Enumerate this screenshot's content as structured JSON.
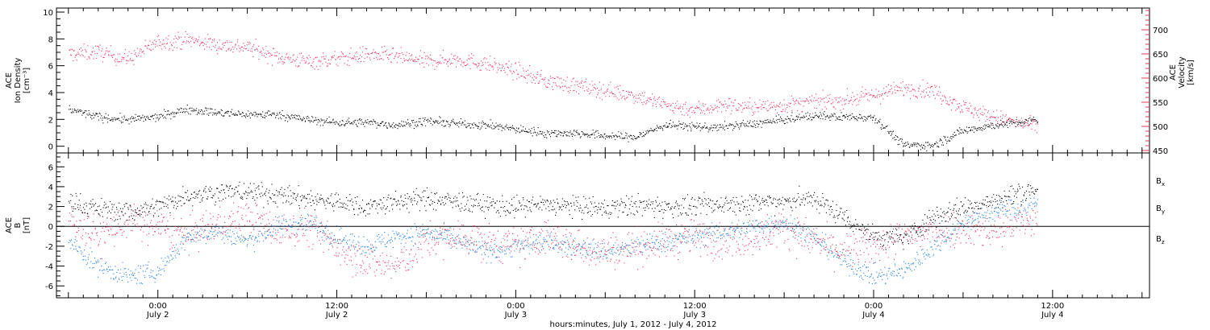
{
  "chart_data": [
    {
      "type": "scatter",
      "panel": "top",
      "left_axis": {
        "label_lines": [
          "ACE",
          "Ion Density",
          "[cm⁻³]"
        ],
        "ylim": [
          -0.5,
          10.3
        ],
        "ticks": [
          0,
          2,
          4,
          6,
          8,
          10
        ],
        "minor_step": 0.5,
        "color": "#000000"
      },
      "right_axis": {
        "label_lines": [
          "ACE",
          "Velocity",
          "[km/s]"
        ],
        "ylim": [
          445,
          745
        ],
        "ticks": [
          450,
          500,
          550,
          600,
          650,
          700
        ],
        "minor_step": 10,
        "color": "#e8335c"
      },
      "series": [
        {
          "axis": "left",
          "color": "#000000",
          "x": [
            -6,
            -4,
            -2,
            0,
            2,
            4,
            6,
            8,
            10,
            12,
            14,
            16,
            18,
            20,
            22,
            24,
            26,
            28,
            30,
            32,
            34,
            36,
            37.5,
            38,
            40,
            42,
            44,
            46,
            48,
            50,
            52,
            54,
            56,
            58,
            59
          ],
          "values": [
            2.8,
            2.2,
            2.0,
            2.2,
            2.8,
            2.5,
            2.4,
            2.4,
            2.0,
            1.8,
            1.8,
            1.6,
            1.9,
            1.7,
            1.6,
            1.3,
            1.0,
            1.0,
            0.8,
            0.7,
            1.6,
            1.5,
            1.4,
            1.5,
            1.7,
            2.0,
            2.3,
            2.2,
            2.2,
            0.1,
            0.1,
            1.2,
            1.6,
            1.8,
            2.0
          ],
          "spread": 0.45
        },
        {
          "axis": "right",
          "color": "#e8335c",
          "x": [
            -6,
            -4,
            -2,
            0,
            2,
            4,
            6,
            8,
            10,
            12,
            14,
            16,
            18,
            20,
            22,
            24,
            26,
            28,
            30,
            32,
            34,
            36,
            38,
            40,
            42,
            44,
            46,
            48,
            50,
            52,
            54,
            56,
            58,
            59
          ],
          "values": [
            650,
            655,
            640,
            675,
            680,
            670,
            665,
            645,
            635,
            640,
            650,
            645,
            635,
            640,
            630,
            615,
            595,
            585,
            575,
            565,
            545,
            535,
            545,
            540,
            545,
            550,
            555,
            565,
            580,
            575,
            540,
            520,
            505,
            500
          ],
          "spread": 24
        }
      ]
    },
    {
      "type": "scatter",
      "panel": "bottom",
      "left_axis": {
        "label_lines": [
          "ACE",
          "B",
          "[nT]"
        ],
        "ylim": [
          -7.2,
          7.4
        ],
        "ticks": [
          -6,
          -4,
          -2,
          0,
          2,
          4,
          6
        ],
        "minor_step": 0.5,
        "color": "#000000"
      },
      "zero_line": 0,
      "series": [
        {
          "name": "Bx",
          "name_base": "B",
          "name_sub": "x",
          "color": "#000000",
          "x": [
            -6,
            -4,
            -2,
            0,
            2,
            4,
            6,
            8,
            10,
            12,
            14,
            16,
            18,
            20,
            22,
            24,
            26,
            28,
            30,
            32,
            34,
            36,
            38,
            40,
            42,
            44,
            46,
            48,
            50,
            52,
            54,
            56,
            58,
            59
          ],
          "values": [
            2.5,
            1.8,
            1.5,
            2.0,
            3.2,
            3.5,
            3.5,
            3.2,
            2.8,
            2.5,
            2.0,
            2.5,
            2.8,
            2.5,
            2.2,
            2.0,
            2.2,
            2.0,
            1.8,
            2.2,
            2.0,
            2.0,
            2.3,
            2.4,
            2.6,
            2.8,
            1.0,
            -1.0,
            -1.2,
            1.0,
            2.0,
            2.5,
            3.5,
            3.8
          ],
          "spread": 1.5
        },
        {
          "name": "By",
          "name_base": "B",
          "name_sub": "y",
          "color": "#1f7fe0",
          "x": [
            -6,
            -4,
            -2,
            0,
            2,
            4,
            6,
            8,
            10,
            12,
            14,
            16,
            18,
            20,
            22,
            24,
            26,
            28,
            30,
            32,
            34,
            36,
            38,
            40,
            42,
            44,
            46,
            48,
            50,
            52,
            54,
            56,
            58,
            59
          ],
          "values": [
            -1.5,
            -4.0,
            -5.0,
            -4.5,
            -1.0,
            -0.5,
            -1.5,
            0.0,
            0.5,
            -1.0,
            -2.0,
            -1.0,
            -0.5,
            -1.5,
            -2.5,
            -2.0,
            -1.5,
            -2.0,
            -2.5,
            -2.0,
            -1.5,
            -1.0,
            -0.5,
            0.0,
            0.5,
            -1.0,
            -3.5,
            -5.0,
            -4.5,
            -2.0,
            0.5,
            1.5,
            2.0,
            2.3
          ],
          "spread": 1.4
        },
        {
          "name": "Bz",
          "name_base": "B",
          "name_sub": "z",
          "color": "#e8335c",
          "x": [
            -6,
            -4,
            -2,
            0,
            2,
            4,
            6,
            8,
            10,
            12,
            14,
            16,
            18,
            20,
            22,
            24,
            26,
            28,
            30,
            32,
            34,
            36,
            38,
            40,
            42,
            44,
            46,
            48,
            50,
            52,
            54,
            56,
            58,
            59
          ],
          "values": [
            1.0,
            -1.0,
            0.5,
            0.0,
            -1.0,
            0.5,
            1.0,
            -0.5,
            0.0,
            -2.0,
            -3.5,
            -4.0,
            -1.5,
            -1.0,
            -1.5,
            -2.0,
            -1.0,
            -2.0,
            -2.5,
            -2.0,
            -1.5,
            -1.0,
            -1.5,
            -1.0,
            0.0,
            -1.5,
            -2.5,
            -2.0,
            -1.0,
            -0.5,
            0.0,
            -0.5,
            0.5,
            0.5
          ],
          "spread": 2.6
        }
      ]
    }
  ],
  "time_axis": {
    "xlim": [
      -6.8,
      66.5
    ],
    "major_ticks": [
      0,
      12,
      24,
      36,
      48,
      60
    ],
    "minor_step": 1,
    "tick_labels": [
      {
        "time": "0:00",
        "date": "July 2"
      },
      {
        "time": "12:00",
        "date": "July 2"
      },
      {
        "time": "0:00",
        "date": "July 3"
      },
      {
        "time": "12:00",
        "date": "July 3"
      },
      {
        "time": "0:00",
        "date": "July 4"
      },
      {
        "time": "12:00",
        "date": "July 4"
      }
    ],
    "title": "hours:minutes,  July  1, 2012  -  July  4, 2012"
  }
}
